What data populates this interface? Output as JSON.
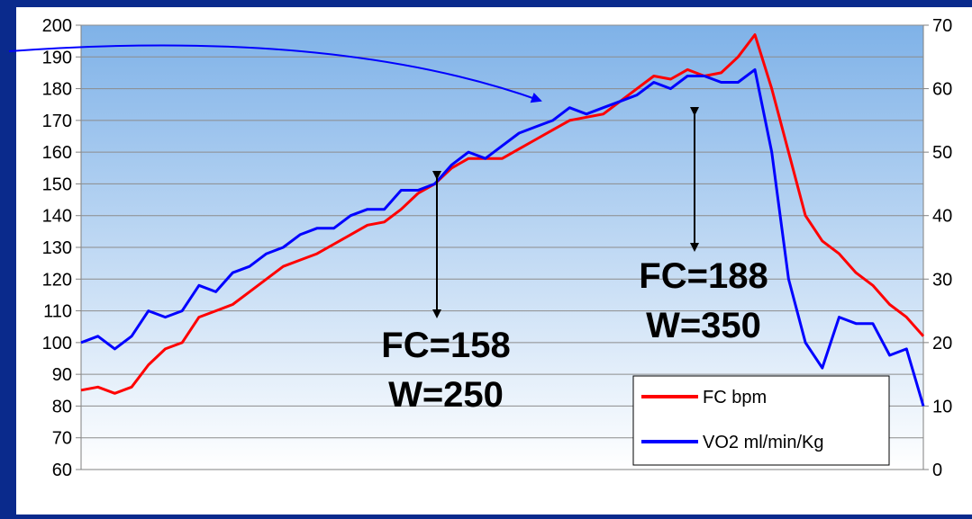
{
  "chart_data": {
    "type": "line",
    "title": "",
    "xlabel": "",
    "ylabel_left": "",
    "ylabel_right": "",
    "y_left": {
      "range": [
        60,
        200
      ],
      "ticks": [
        "60",
        "70",
        "80",
        "90",
        "100",
        "110",
        "120",
        "130",
        "140",
        "150",
        "160",
        "170",
        "180",
        "190",
        "200"
      ]
    },
    "y_right": {
      "range": [
        0,
        70
      ],
      "ticks": [
        "0",
        "10",
        "20",
        "30",
        "40",
        "50",
        "60",
        "70"
      ]
    },
    "x_range": [
      0,
      100
    ],
    "grid": "horizontal",
    "legend_position": "bottom-right",
    "series": [
      {
        "name": "FC bpm",
        "axis": "left",
        "color": "#ff0000",
        "x": [
          0,
          2,
          4,
          6,
          8,
          10,
          12,
          14,
          16,
          18,
          20,
          22,
          24,
          26,
          28,
          30,
          32,
          34,
          36,
          38,
          40,
          42,
          44,
          46,
          48,
          50,
          52,
          54,
          56,
          58,
          60,
          62,
          64,
          66,
          68,
          70,
          72,
          74,
          76,
          78,
          80,
          82,
          84,
          86,
          88,
          90,
          92,
          94,
          96,
          98,
          100
        ],
        "y": [
          85,
          86,
          84,
          86,
          93,
          98,
          100,
          108,
          110,
          112,
          116,
          120,
          124,
          126,
          128,
          131,
          134,
          137,
          138,
          142,
          147,
          150,
          155,
          158,
          158,
          158,
          161,
          164,
          167,
          170,
          171,
          172,
          176,
          180,
          184,
          183,
          186,
          184,
          185,
          190,
          197,
          180,
          160,
          140,
          132,
          128,
          122,
          118,
          112,
          108,
          102
        ]
      },
      {
        "name": "VO2 ml/min/Kg",
        "axis": "right",
        "color": "#0000ff",
        "x": [
          0,
          2,
          4,
          6,
          8,
          10,
          12,
          14,
          16,
          18,
          20,
          22,
          24,
          26,
          28,
          30,
          32,
          34,
          36,
          38,
          40,
          42,
          44,
          46,
          48,
          50,
          52,
          54,
          56,
          58,
          60,
          62,
          64,
          66,
          68,
          70,
          72,
          74,
          76,
          78,
          80,
          82,
          84,
          86,
          88,
          90,
          92,
          94,
          96,
          98,
          100
        ],
        "y": [
          20,
          21,
          19,
          21,
          25,
          24,
          25,
          29,
          28,
          31,
          32,
          34,
          35,
          37,
          38,
          38,
          40,
          41,
          41,
          44,
          44,
          45,
          48,
          50,
          49,
          51,
          53,
          54,
          55,
          57,
          56,
          57,
          58,
          59,
          61,
          60,
          62,
          62,
          61,
          61,
          63,
          50,
          30,
          20,
          16,
          24,
          23,
          23,
          18,
          19,
          10
        ]
      }
    ],
    "annotations": [
      {
        "line1": "FC=158",
        "line2": "W=250"
      },
      {
        "line1": "FC=188",
        "line2": "W=350"
      }
    ]
  },
  "colors": {
    "background": "#0a2a8c",
    "plot_top": "#7fb2e8",
    "plot_bottom": "#ffffff"
  }
}
